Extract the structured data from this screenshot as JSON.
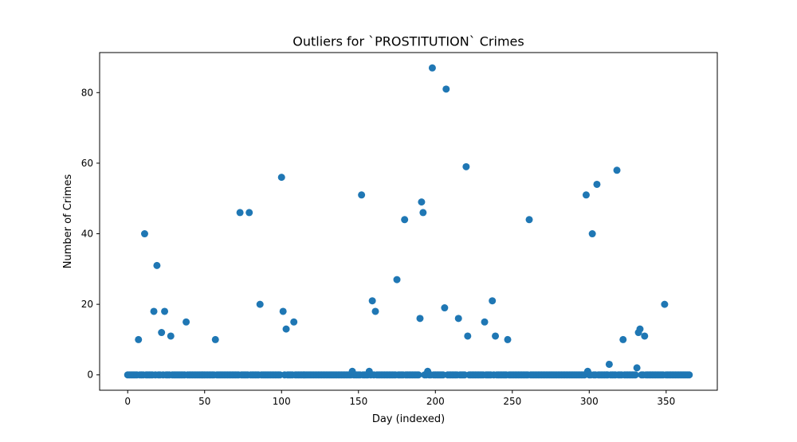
{
  "chart_data": {
    "type": "scatter",
    "title": "Outliers for `PROSTITUTION` Crimes",
    "xlabel": "Day (indexed)",
    "ylabel": "Number of Crimes",
    "xlim": [
      -18.25,
      383.25
    ],
    "ylim": [
      -4.35,
      91.35
    ],
    "xticks": [
      0,
      50,
      100,
      150,
      200,
      250,
      300,
      350
    ],
    "yticks": [
      0,
      20,
      40,
      60,
      80
    ],
    "grid": false,
    "marker_color": "#1f77b4",
    "points": [
      {
        "x": 7,
        "y": 10
      },
      {
        "x": 11,
        "y": 40
      },
      {
        "x": 17,
        "y": 18
      },
      {
        "x": 19,
        "y": 31
      },
      {
        "x": 22,
        "y": 12
      },
      {
        "x": 24,
        "y": 18
      },
      {
        "x": 28,
        "y": 11
      },
      {
        "x": 38,
        "y": 15
      },
      {
        "x": 57,
        "y": 10
      },
      {
        "x": 73,
        "y": 46
      },
      {
        "x": 79,
        "y": 46
      },
      {
        "x": 86,
        "y": 20
      },
      {
        "x": 100,
        "y": 56
      },
      {
        "x": 101,
        "y": 18
      },
      {
        "x": 103,
        "y": 13
      },
      {
        "x": 108,
        "y": 15
      },
      {
        "x": 146,
        "y": 1
      },
      {
        "x": 152,
        "y": 51
      },
      {
        "x": 157,
        "y": 1
      },
      {
        "x": 159,
        "y": 21
      },
      {
        "x": 161,
        "y": 18
      },
      {
        "x": 175,
        "y": 27
      },
      {
        "x": 180,
        "y": 44
      },
      {
        "x": 190,
        "y": 16
      },
      {
        "x": 191,
        "y": 49
      },
      {
        "x": 192,
        "y": 46
      },
      {
        "x": 195,
        "y": 1
      },
      {
        "x": 198,
        "y": 87
      },
      {
        "x": 206,
        "y": 19
      },
      {
        "x": 207,
        "y": 81
      },
      {
        "x": 215,
        "y": 16
      },
      {
        "x": 220,
        "y": 59
      },
      {
        "x": 221,
        "y": 11
      },
      {
        "x": 232,
        "y": 15
      },
      {
        "x": 237,
        "y": 21
      },
      {
        "x": 239,
        "y": 11
      },
      {
        "x": 247,
        "y": 10
      },
      {
        "x": 261,
        "y": 44
      },
      {
        "x": 298,
        "y": 51
      },
      {
        "x": 299,
        "y": 1
      },
      {
        "x": 302,
        "y": 40
      },
      {
        "x": 305,
        "y": 54
      },
      {
        "x": 313,
        "y": 3
      },
      {
        "x": 318,
        "y": 58
      },
      {
        "x": 322,
        "y": 10
      },
      {
        "x": 331,
        "y": 2
      },
      {
        "x": 332,
        "y": 12
      },
      {
        "x": 333,
        "y": 13
      },
      {
        "x": 336,
        "y": 11
      },
      {
        "x": 349,
        "y": 20
      }
    ],
    "zero_range": [
      0,
      365
    ],
    "zero_value": 0
  }
}
